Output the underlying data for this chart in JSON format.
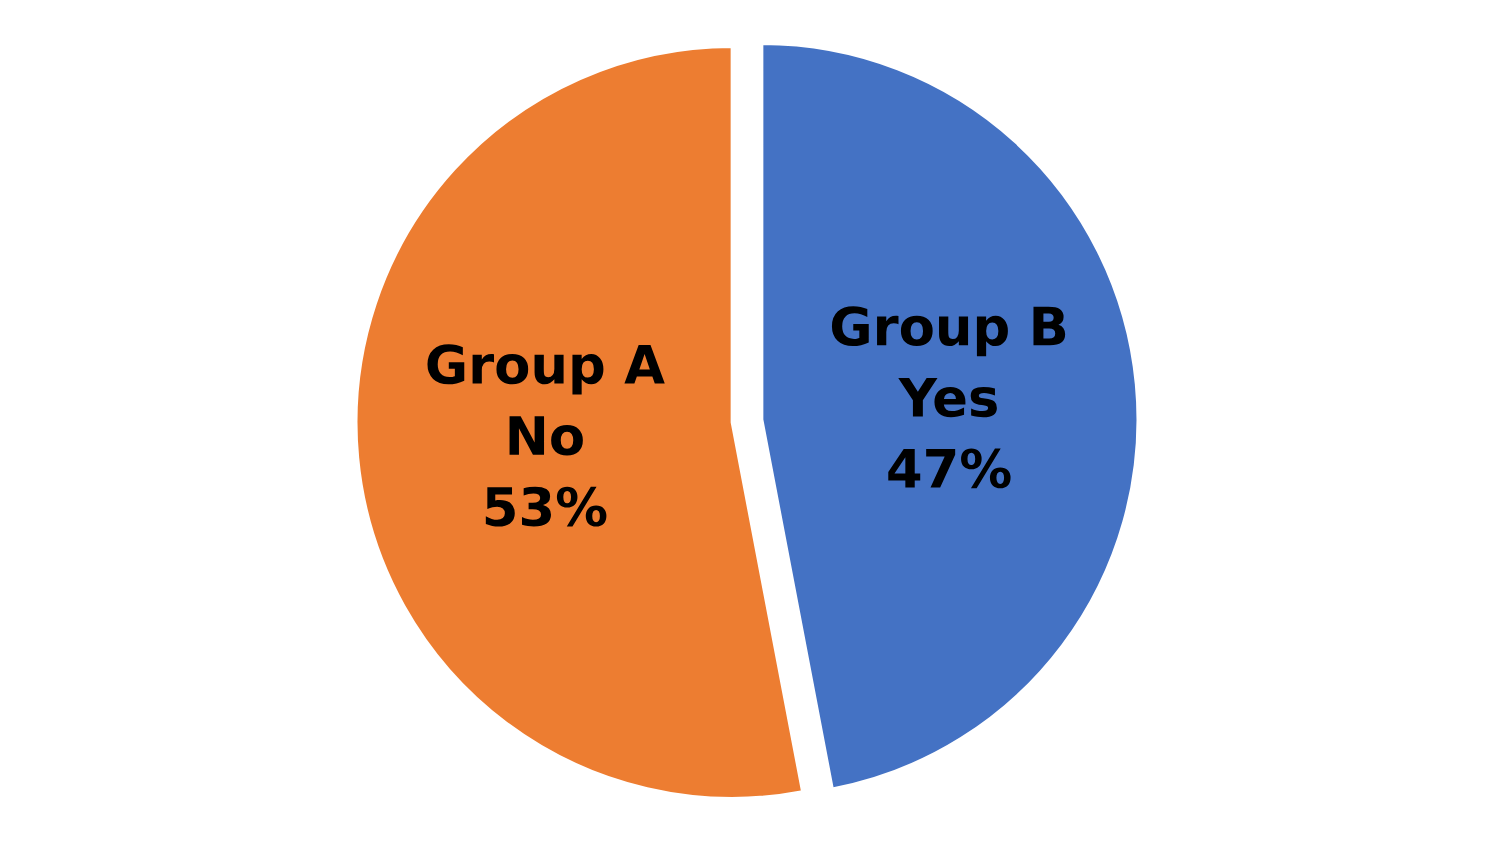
{
  "chart_data": {
    "type": "pie",
    "categories": [
      "Group A\nNo",
      "Group B\nYes"
    ],
    "values": [
      53,
      47
    ],
    "value_labels": [
      "53%",
      "47%"
    ],
    "colors": [
      "#ed7d31",
      "#4472c4"
    ]
  }
}
